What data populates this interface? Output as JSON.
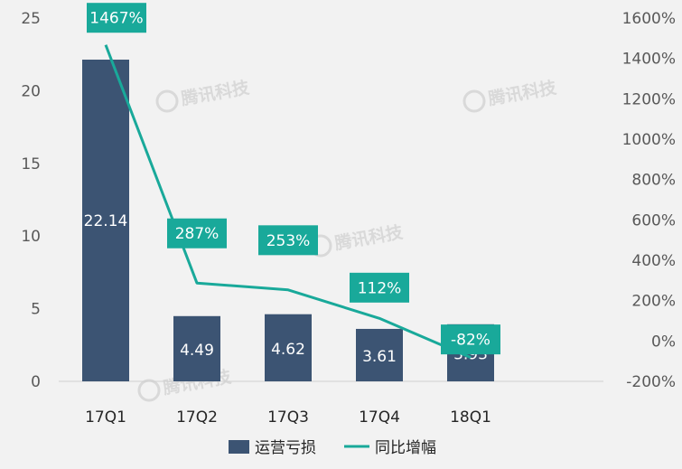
{
  "chart_data": {
    "type": "bar+line",
    "categories": [
      "17Q1",
      "17Q2",
      "17Q3",
      "17Q4",
      "18Q1"
    ],
    "series": [
      {
        "name": "运营亏损",
        "type": "bar",
        "axis": "left",
        "values": [
          22.14,
          4.49,
          4.62,
          3.61,
          3.93
        ],
        "color": "#3c5473"
      },
      {
        "name": "同比增幅",
        "type": "line",
        "axis": "right",
        "values": [
          1467,
          287,
          253,
          112,
          -82
        ],
        "color": "#19a99a"
      }
    ],
    "bar_labels": [
      "22.14",
      "4.49",
      "4.62",
      "3.61",
      "3.93"
    ],
    "line_labels": [
      "1467%",
      "287%",
      "253%",
      "112%",
      "-82%"
    ],
    "y_left": {
      "min": 0,
      "max": 25,
      "ticks": [
        "0",
        "5",
        "10",
        "15",
        "20",
        "25"
      ]
    },
    "y_right": {
      "min": -200,
      "max": 1600,
      "ticks": [
        "-200%",
        "0%",
        "200%",
        "400%",
        "600%",
        "800%",
        "1000%",
        "1200%",
        "1400%",
        "1600%"
      ]
    },
    "legend": [
      "运营亏损",
      "同比增幅"
    ],
    "legend_position": "bottom",
    "grid": false,
    "watermark": "腾讯科技"
  }
}
